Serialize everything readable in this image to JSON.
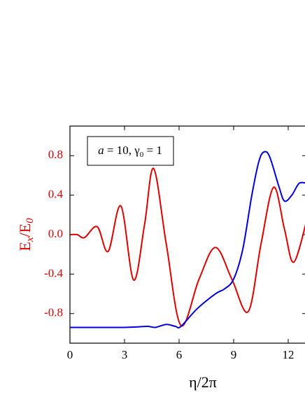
{
  "chart_data": {
    "type": "line",
    "xlabel": "η/2π",
    "ylabel": [
      "E",
      "x",
      "/E",
      "0"
    ],
    "annotation": [
      "a",
      " = 10, γ",
      "0",
      " = 1"
    ],
    "xlim": [
      0,
      13
    ],
    "xticks": [
      0,
      3,
      6,
      9,
      12
    ],
    "ylim": [
      -1.1,
      1.1
    ],
    "yticks": [
      -0.8,
      -0.4,
      {
        "value": 0,
        "label": "0.0"
      },
      0.4,
      0.8
    ],
    "ylabel_color": "#e00000",
    "series": [
      {
        "color": "#e00000",
        "x": [
          0,
          0.4,
          0.8,
          1.5,
          2.1,
          2.8,
          3.5,
          4.1,
          4.6,
          5.3,
          6.1,
          7.1,
          8.0,
          8.9,
          9.8,
          10.5,
          11.2,
          11.8,
          12.3,
          13
        ],
        "values": [
          0,
          0,
          -0.03,
          0.08,
          -0.17,
          0.29,
          -0.46,
          0.1,
          0.67,
          -0.1,
          -0.92,
          -0.45,
          -0.13,
          -0.45,
          -0.78,
          -0.1,
          0.48,
          0.05,
          -0.28,
          0.13
        ]
      },
      {
        "color": "#0000e0",
        "x": [
          0,
          1.5,
          3.0,
          3.7,
          4.3,
          4.7,
          5.3,
          5.8,
          6.1,
          7.0,
          8.0,
          8.5,
          9.0,
          9.5,
          10.0,
          10.4,
          10.7,
          11.0,
          11.5,
          11.8,
          12.2,
          12.6,
          13
        ],
        "values": [
          -0.94,
          -0.94,
          -0.94,
          -0.935,
          -0.93,
          -0.94,
          -0.91,
          -0.93,
          -0.93,
          -0.75,
          -0.6,
          -0.55,
          -0.45,
          -0.15,
          0.4,
          0.75,
          0.84,
          0.78,
          0.48,
          0.34,
          0.4,
          0.52,
          0.52
        ]
      }
    ]
  }
}
